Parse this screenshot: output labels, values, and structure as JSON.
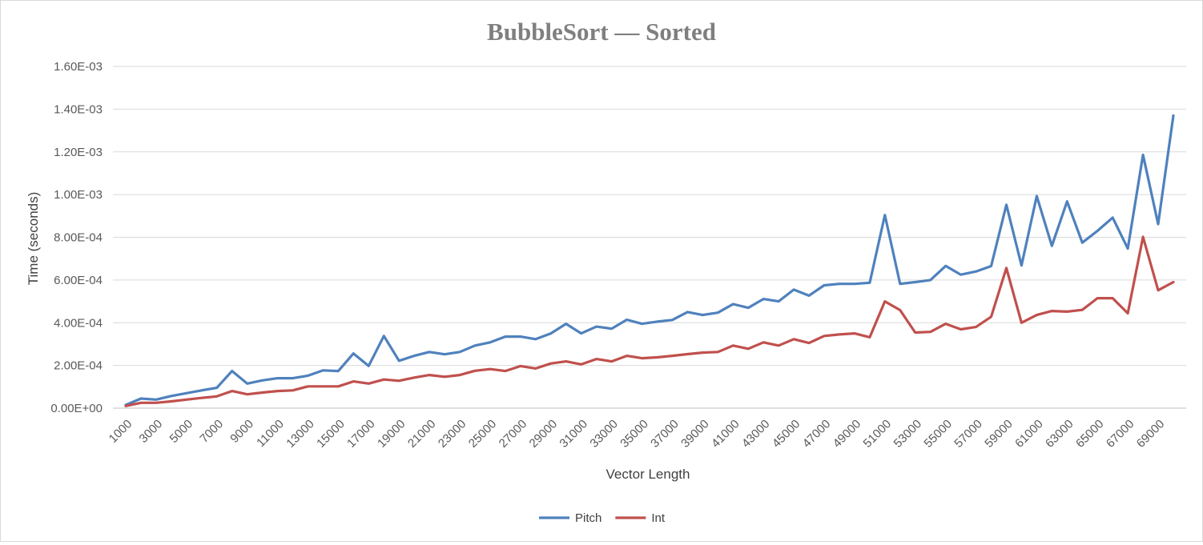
{
  "chart_data": {
    "type": "line",
    "title": "BubbleSort — Sorted",
    "xlabel": "Vector Length",
    "ylabel": "Time (seconds)",
    "ylim": [
      0,
      0.0016
    ],
    "yticks": [
      "0.00E+00",
      "2.00E-04",
      "4.00E-04",
      "6.00E-04",
      "8.00E-04",
      "1.00E-03",
      "1.20E-03",
      "1.40E-03",
      "1.60E-03"
    ],
    "x": [
      1000,
      2000,
      3000,
      4000,
      5000,
      6000,
      7000,
      8000,
      9000,
      10000,
      11000,
      12000,
      13000,
      14000,
      15000,
      16000,
      17000,
      18000,
      19000,
      20000,
      21000,
      22000,
      23000,
      24000,
      25000,
      26000,
      27000,
      28000,
      29000,
      30000,
      31000,
      32000,
      33000,
      34000,
      35000,
      36000,
      37000,
      38000,
      39000,
      40000,
      41000,
      42000,
      43000,
      44000,
      45000,
      46000,
      47000,
      48000,
      49000,
      50000,
      51000,
      52000,
      53000,
      54000,
      55000,
      56000,
      57000,
      58000,
      59000,
      60000,
      61000,
      62000,
      63000,
      64000,
      65000,
      66000,
      67000,
      68000,
      69000,
      70000
    ],
    "xtick_labels": [
      "1000",
      "3000",
      "5000",
      "7000",
      "9000",
      "11000",
      "13000",
      "15000",
      "17000",
      "19000",
      "21000",
      "23000",
      "25000",
      "27000",
      "29000",
      "31000",
      "33000",
      "35000",
      "37000",
      "39000",
      "41000",
      "43000",
      "45000",
      "47000",
      "49000",
      "51000",
      "53000",
      "55000",
      "57000",
      "59000",
      "61000",
      "63000",
      "65000",
      "67000",
      "69000"
    ],
    "series": [
      {
        "name": "Pitch",
        "color": "#4f81bd",
        "values": [
          1.5e-05,
          4.5e-05,
          4e-05,
          5.7e-05,
          7e-05,
          8.3e-05,
          9.5e-05,
          0.000174,
          0.000115,
          0.00013,
          0.00014,
          0.00014,
          0.000152,
          0.000177,
          0.000174,
          0.000256,
          0.000198,
          0.000338,
          0.000222,
          0.000245,
          0.000263,
          0.000252,
          0.000263,
          0.000293,
          0.000308,
          0.000335,
          0.000335,
          0.000323,
          0.00035,
          0.000395,
          0.00035,
          0.000382,
          0.000372,
          0.000414,
          0.000395,
          0.000405,
          0.000413,
          0.00045,
          0.000436,
          0.000447,
          0.000487,
          0.00047,
          0.000511,
          0.0005,
          0.000555,
          0.000527,
          0.000575,
          0.000582,
          0.000582,
          0.000587,
          0.000904,
          0.000582,
          0.00059,
          0.0006,
          0.000666,
          0.000625,
          0.00064,
          0.000665,
          0.000952,
          0.000668,
          0.000993,
          0.00076,
          0.000968,
          0.000775,
          0.00083,
          0.000892,
          0.000747,
          0.001186,
          0.000862,
          0.00137
        ]
      },
      {
        "name": "Int",
        "color": "#c0504d",
        "values": [
          1e-05,
          2.5e-05,
          2.5e-05,
          3.2e-05,
          4e-05,
          4.8e-05,
          5.5e-05,
          8e-05,
          6.5e-05,
          7.3e-05,
          8e-05,
          8.3e-05,
          0.000102,
          0.000102,
          0.000102,
          0.000125,
          0.000115,
          0.000134,
          0.000128,
          0.000143,
          0.000155,
          0.000147,
          0.000155,
          0.000175,
          0.000183,
          0.000174,
          0.000197,
          0.000186,
          0.000209,
          0.000219,
          0.000205,
          0.00023,
          0.000219,
          0.000245,
          0.000234,
          0.000238,
          0.000245,
          0.000253,
          0.00026,
          0.000263,
          0.000293,
          0.000278,
          0.000308,
          0.000293,
          0.000323,
          0.000305,
          0.000338,
          0.000345,
          0.00035,
          0.000332,
          0.0005,
          0.000459,
          0.000354,
          0.000357,
          0.000395,
          0.000369,
          0.00038,
          0.000428,
          0.000656,
          0.0004,
          0.000436,
          0.000455,
          0.000452,
          0.00046,
          0.000515,
          0.000515,
          0.000444,
          0.000802,
          0.000552,
          0.00059
        ]
      }
    ],
    "legend_position": "bottom",
    "grid": true
  }
}
